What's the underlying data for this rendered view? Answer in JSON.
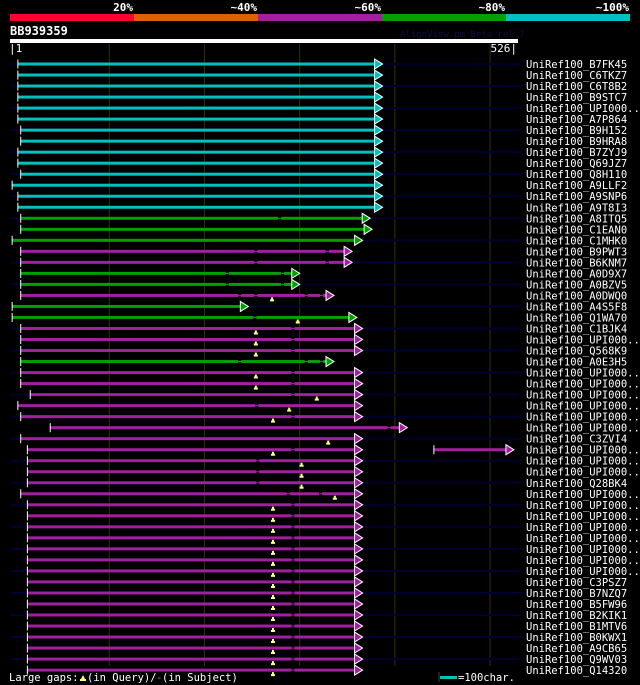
{
  "header": {
    "scale_labels": [
      "20%",
      "~40%",
      "~60%",
      "~80%",
      "~100%"
    ],
    "scale_colors": [
      "#ff0030",
      "#e06000",
      "#a020a0",
      "#00a000",
      "#00c0c0"
    ],
    "query_name": "BB939359",
    "watermark": "AlignView.pm Beta rel.7",
    "query_start_label": "|1",
    "query_end_label": "526|",
    "query_length": 526
  },
  "colors": {
    "cyan": "#00c0c0",
    "green": "#00a000",
    "magenta": "#a020a0",
    "track": "#000030",
    "grid": "#303010",
    "marker": "#ffff80"
  },
  "hits": [
    {
      "label": "UniRef100_B7FK45",
      "color": "cyan",
      "start": 4,
      "end": 385,
      "gaps": [],
      "markers": []
    },
    {
      "label": "UniRef100_C6TKZ7",
      "color": "cyan",
      "start": 4,
      "end": 385,
      "gaps": [],
      "markers": []
    },
    {
      "label": "UniRef100_C6T8B2",
      "color": "cyan",
      "start": 4,
      "end": 385,
      "gaps": [],
      "markers": []
    },
    {
      "label": "UniRef100_B9STC7",
      "color": "cyan",
      "start": 4,
      "end": 385,
      "gaps": [],
      "markers": []
    },
    {
      "label": "UniRef100_UPI000..",
      "color": "cyan",
      "start": 4,
      "end": 385,
      "gaps": [],
      "markers": []
    },
    {
      "label": "UniRef100_A7P864",
      "color": "cyan",
      "start": 4,
      "end": 385,
      "gaps": [],
      "markers": []
    },
    {
      "label": "UniRef100_B9H152",
      "color": "cyan",
      "start": 7,
      "end": 385,
      "gaps": [],
      "markers": []
    },
    {
      "label": "UniRef100_B9HRA8",
      "color": "cyan",
      "start": 7,
      "end": 385,
      "gaps": [],
      "markers": []
    },
    {
      "label": "UniRef100_B7ZYJ9",
      "color": "cyan",
      "start": 4,
      "end": 385,
      "gaps": [],
      "markers": []
    },
    {
      "label": "UniRef100_Q69JZ7",
      "color": "cyan",
      "start": 4,
      "end": 385,
      "gaps": [],
      "markers": []
    },
    {
      "label": "UniRef100_Q8H110",
      "color": "cyan",
      "start": 7,
      "end": 385,
      "gaps": [],
      "markers": []
    },
    {
      "label": "UniRef100_A9LLF2",
      "color": "cyan",
      "start": -2,
      "end": 385,
      "gaps": [],
      "markers": []
    },
    {
      "label": "UniRef100_A9SNP6",
      "color": "cyan",
      "start": 4,
      "end": 385,
      "gaps": [],
      "markers": []
    },
    {
      "label": "UniRef100_A9T8I3",
      "color": "cyan",
      "start": 4,
      "end": 385,
      "gaps": [],
      "markers": []
    },
    {
      "label": "UniRef100_A8ITQ5",
      "color": "green",
      "start": 7,
      "end": 372,
      "gaps": [
        279
      ],
      "markers": []
    },
    {
      "label": "UniRef100_C1EAN0",
      "color": "green",
      "start": 7,
      "end": 374,
      "gaps": [],
      "markers": []
    },
    {
      "label": "UniRef100_C1MHK0",
      "color": "green",
      "start": -2,
      "end": 364,
      "gaps": [],
      "markers": []
    },
    {
      "label": "UniRef100_B9PWT3",
      "color": "magenta",
      "start": 7,
      "end": 353,
      "gaps": [
        254,
        329
      ],
      "markers": []
    },
    {
      "label": "UniRef100_B6KNM7",
      "color": "magenta",
      "start": 7,
      "end": 353,
      "gaps": [
        254,
        329
      ],
      "markers": []
    },
    {
      "label": "UniRef100_A0D9X7",
      "color": "green",
      "start": 7,
      "end": 298,
      "gaps": [
        224,
        282
      ],
      "markers": []
    },
    {
      "label": "UniRef100_A0BZV5",
      "color": "green",
      "start": 7,
      "end": 298,
      "gaps": [
        224,
        282
      ],
      "markers": []
    },
    {
      "label": "UniRef100_A0DWQ0",
      "color": "magenta",
      "start": 7,
      "end": 334,
      "gaps": [
        237,
        254,
        307,
        323
      ],
      "markers": [
        271
      ]
    },
    {
      "label": "UniRef100_A4S5F8",
      "color": "green",
      "start": -2,
      "end": 244,
      "gaps": [],
      "markers": []
    },
    {
      "label": "UniRef100_Q1WA70",
      "color": "green",
      "start": -2,
      "end": 358,
      "gaps": [
        253
      ],
      "markers": [
        298
      ]
    },
    {
      "label": "UniRef100_C1BJK4",
      "color": "magenta",
      "start": 7,
      "end": 364,
      "gaps": [
        293
      ],
      "markers": [
        254
      ]
    },
    {
      "label": "UniRef100_UPI000..",
      "color": "magenta",
      "start": 7,
      "end": 364,
      "gaps": [
        293
      ],
      "markers": [
        254
      ]
    },
    {
      "label": "UniRef100_Q568K9",
      "color": "magenta",
      "start": 7,
      "end": 364,
      "gaps": [
        293
      ],
      "markers": [
        254
      ]
    },
    {
      "label": "UniRef100_A0E3H5",
      "color": "green",
      "start": 7,
      "end": 334,
      "gaps": [
        237,
        307,
        323
      ],
      "markers": []
    },
    {
      "label": "UniRef100_UPI000..",
      "color": "magenta",
      "start": 7,
      "end": 364,
      "gaps": [
        293
      ],
      "markers": [
        254
      ]
    },
    {
      "label": "UniRef100_UPI000..",
      "color": "magenta",
      "start": 7,
      "end": 364,
      "gaps": [
        293
      ],
      "markers": [
        254
      ]
    },
    {
      "label": "UniRef100_UPI000..",
      "color": "magenta",
      "start": 17,
      "end": 364,
      "gaps": [
        293
      ],
      "markers": [
        318
      ]
    },
    {
      "label": "UniRef100_UPI000..",
      "color": "magenta",
      "start": 4,
      "end": 364,
      "gaps": [
        255
      ],
      "markers": [
        289
      ]
    },
    {
      "label": "UniRef100_UPI000..",
      "color": "magenta",
      "start": 7,
      "end": 364,
      "gaps": [
        293
      ],
      "markers": [
        272
      ]
    },
    {
      "label": "UniRef100_UPI000..",
      "color": "magenta",
      "start": 38,
      "end": 411,
      "gaps": [
        394
      ],
      "markers": []
    },
    {
      "label": "UniRef100_C3ZVI4",
      "color": "magenta",
      "start": 7,
      "end": 364,
      "gaps": [],
      "markers": [
        330
      ]
    },
    {
      "label": "UniRef100_UPI000..",
      "color": "magenta",
      "start": 14,
      "end": 364,
      "gaps": [
        293
      ],
      "markers": [
        272
      ],
      "extra": {
        "start": 441,
        "end": 523
      }
    },
    {
      "label": "UniRef100_UPI000..",
      "color": "magenta",
      "start": 14,
      "end": 364,
      "gaps": [
        256
      ],
      "markers": [
        302
      ]
    },
    {
      "label": "UniRef100_UPI000..",
      "color": "magenta",
      "start": 14,
      "end": 364,
      "gaps": [
        256
      ],
      "markers": [
        302
      ]
    },
    {
      "label": "UniRef100_Q28BK4",
      "color": "magenta",
      "start": 14,
      "end": 364,
      "gaps": [
        256
      ],
      "markers": [
        302
      ]
    },
    {
      "label": "UniRef100_UPI000..",
      "color": "magenta",
      "start": 7,
      "end": 364,
      "gaps": [
        288,
        322
      ],
      "markers": [
        337
      ]
    },
    {
      "label": "UniRef100_UPI000..",
      "color": "magenta",
      "start": 14,
      "end": 364,
      "gaps": [
        293
      ],
      "markers": [
        272
      ]
    },
    {
      "label": "UniRef100_UPI000..",
      "color": "magenta",
      "start": 14,
      "end": 364,
      "gaps": [
        293
      ],
      "markers": [
        272
      ]
    },
    {
      "label": "UniRef100_UPI000..",
      "color": "magenta",
      "start": 14,
      "end": 364,
      "gaps": [
        293
      ],
      "markers": [
        272
      ]
    },
    {
      "label": "UniRef100_UPI000..",
      "color": "magenta",
      "start": 14,
      "end": 364,
      "gaps": [
        293
      ],
      "markers": [
        272
      ]
    },
    {
      "label": "UniRef100_UPI000..",
      "color": "magenta",
      "start": 14,
      "end": 364,
      "gaps": [
        293
      ],
      "markers": [
        272
      ]
    },
    {
      "label": "UniRef100_UPI000..",
      "color": "magenta",
      "start": 14,
      "end": 364,
      "gaps": [
        293
      ],
      "markers": [
        272
      ]
    },
    {
      "label": "UniRef100_UPI000..",
      "color": "magenta",
      "start": 14,
      "end": 364,
      "gaps": [
        293
      ],
      "markers": [
        272
      ]
    },
    {
      "label": "UniRef100_C3PSZ7",
      "color": "magenta",
      "start": 14,
      "end": 364,
      "gaps": [
        293
      ],
      "markers": [
        272
      ]
    },
    {
      "label": "UniRef100_B7NZQ7",
      "color": "magenta",
      "start": 14,
      "end": 364,
      "gaps": [
        293
      ],
      "markers": [
        272
      ]
    },
    {
      "label": "UniRef100_B5FW96",
      "color": "magenta",
      "start": 14,
      "end": 364,
      "gaps": [
        293
      ],
      "markers": [
        272
      ]
    },
    {
      "label": "UniRef100_B2KIK1",
      "color": "magenta",
      "start": 14,
      "end": 364,
      "gaps": [
        293
      ],
      "markers": [
        272
      ]
    },
    {
      "label": "UniRef100_B1MTV6",
      "color": "magenta",
      "start": 14,
      "end": 364,
      "gaps": [
        293
      ],
      "markers": [
        272
      ]
    },
    {
      "label": "UniRef100_B0KWX1",
      "color": "magenta",
      "start": 14,
      "end": 364,
      "gaps": [
        293
      ],
      "markers": [
        272
      ]
    },
    {
      "label": "UniRef100_A9CB65",
      "color": "magenta",
      "start": 14,
      "end": 364,
      "gaps": [
        293
      ],
      "markers": [
        272
      ]
    },
    {
      "label": "UniRef100_Q9WV03",
      "color": "magenta",
      "start": 14,
      "end": 364,
      "gaps": [
        293
      ],
      "markers": [
        272
      ]
    },
    {
      "label": "UniRef100_Q14320",
      "color": "magenta",
      "start": 14,
      "end": 364,
      "gaps": [
        293
      ],
      "markers": [
        272
      ]
    }
  ],
  "legend": {
    "gaps_prefix": "Large gaps:",
    "gaps_query": "(in Query)/",
    "gaps_subject_symbol": "-",
    "gaps_subject": " (in Subject)",
    "scale_label": "=100char."
  }
}
